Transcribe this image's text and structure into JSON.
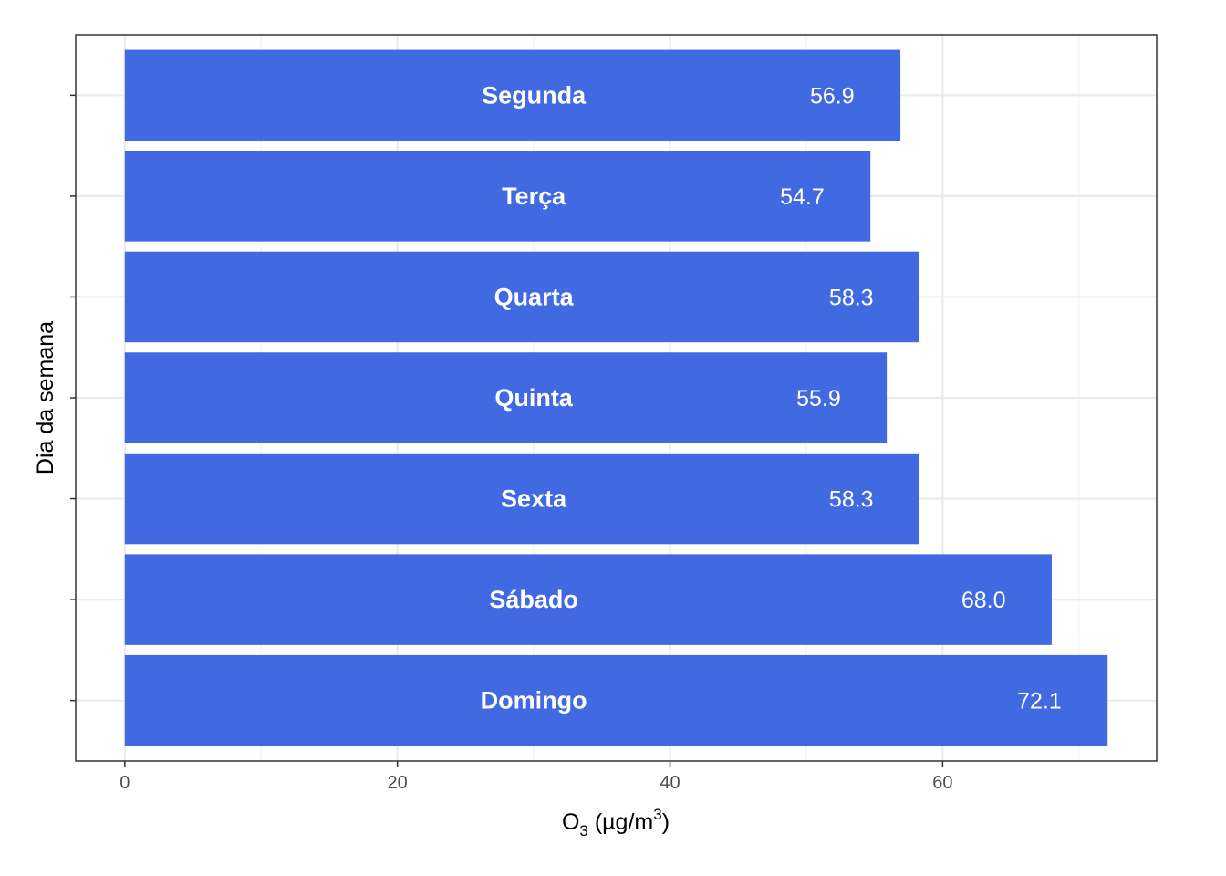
{
  "chart_data": {
    "type": "bar",
    "orientation": "horizontal",
    "categories": [
      "Segunda",
      "Terça",
      "Quarta",
      "Quinta",
      "Sexta",
      "Sábado",
      "Domingo"
    ],
    "values": [
      56.9,
      54.7,
      58.3,
      55.9,
      58.3,
      68.0,
      72.1
    ],
    "value_labels": [
      "56.9",
      "54.7",
      "58.3",
      "55.9",
      "58.3",
      "68.0",
      "72.1"
    ],
    "xlabel": "O3 (µg/m3)",
    "xlabel_parts": {
      "base": "O",
      "sub": "3",
      "mid": " (µg/m",
      "sup": "3",
      "end": ")"
    },
    "ylabel": "Dia da semana",
    "xlim": [
      -3.6,
      75.7
    ],
    "xticks": [
      0,
      20,
      40,
      60
    ],
    "xtick_labels": [
      "0",
      "20",
      "40",
      "60"
    ],
    "grid": true,
    "legend": "none",
    "colors": {
      "bar": "#4169E1",
      "grid_major": "#ebebeb",
      "grid_minor": "#f3f3f3",
      "panel_border": "#333333",
      "tick_text": "#4d4d4d"
    }
  }
}
